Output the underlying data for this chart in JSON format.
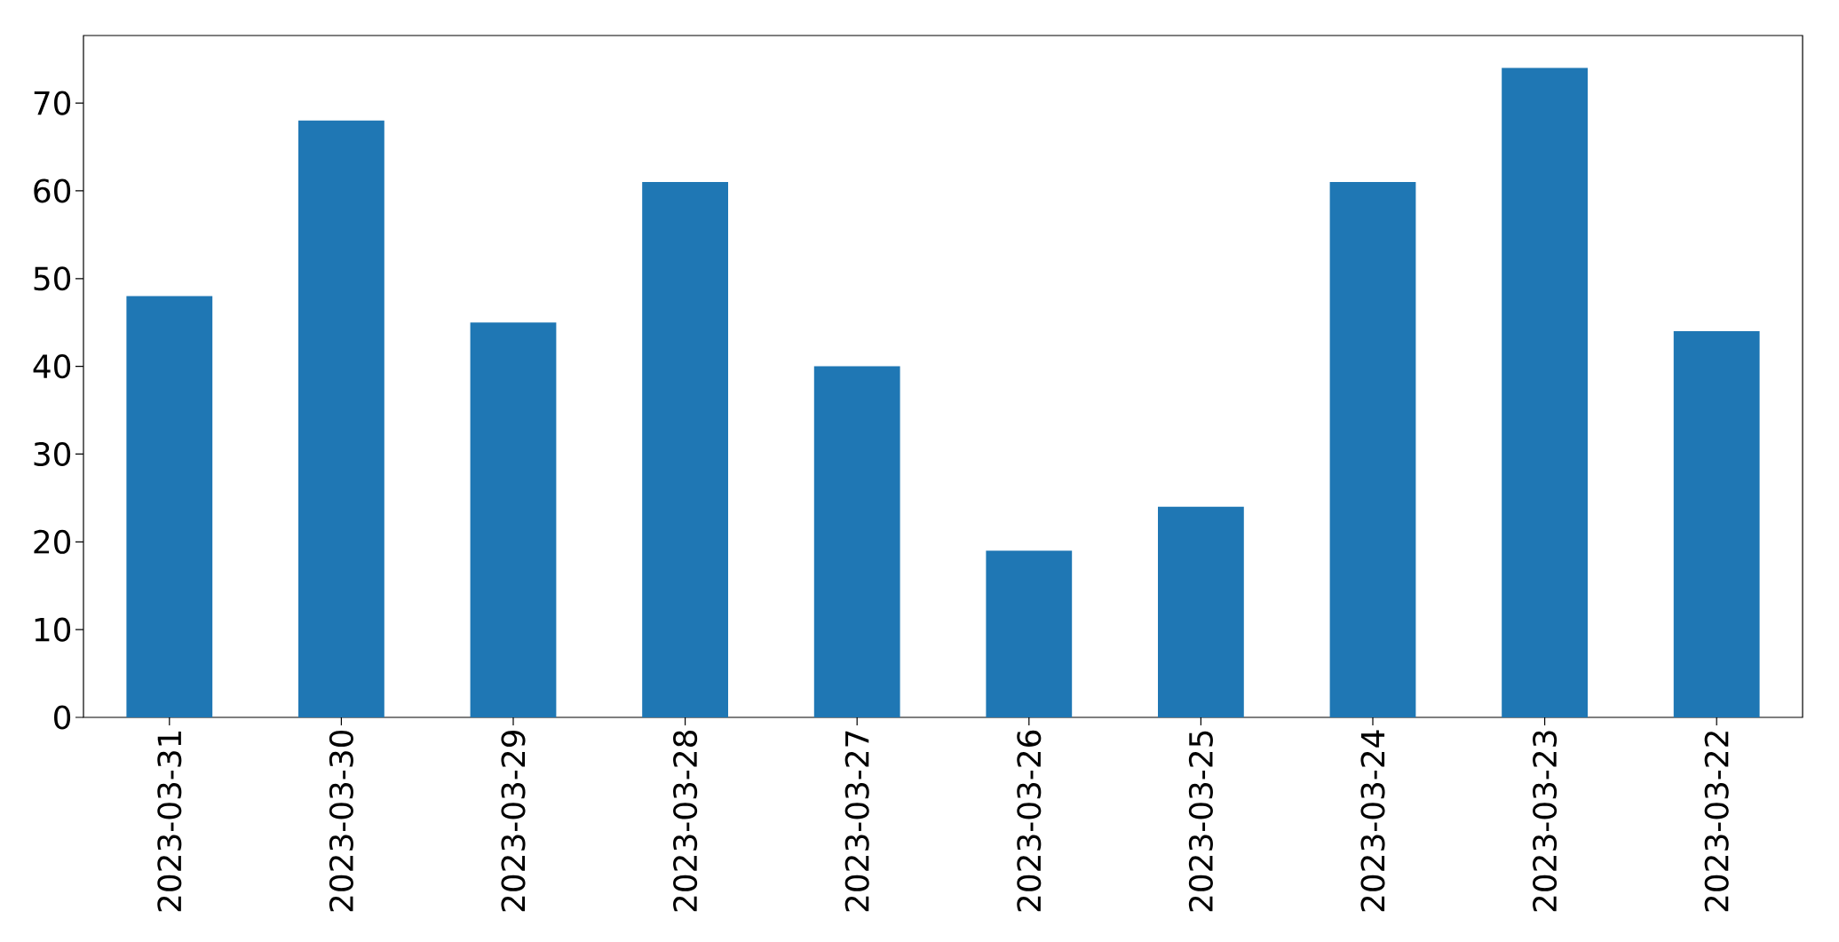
{
  "chart_data": {
    "type": "bar",
    "categories": [
      "2023-03-31",
      "2023-03-30",
      "2023-03-29",
      "2023-03-28",
      "2023-03-27",
      "2023-03-26",
      "2023-03-25",
      "2023-03-24",
      "2023-03-23",
      "2023-03-22"
    ],
    "values": [
      48,
      68,
      45,
      61,
      40,
      19,
      24,
      61,
      74,
      44
    ],
    "color": "#1f77b4",
    "ylim": [
      0,
      77.7
    ],
    "yticks": [
      0,
      10,
      20,
      30,
      40,
      50,
      60,
      70
    ]
  }
}
